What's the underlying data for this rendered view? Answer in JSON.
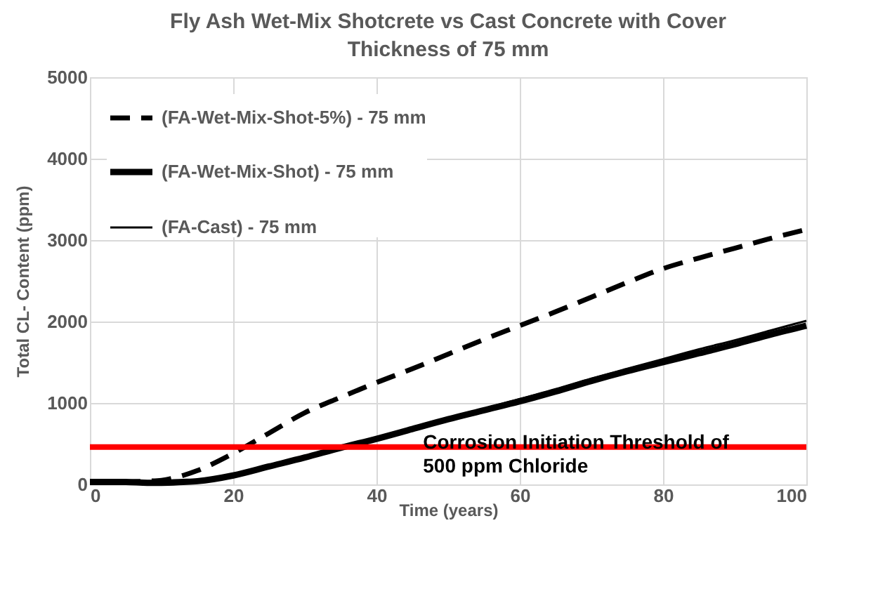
{
  "chart_data": {
    "type": "line",
    "title": "Fly Ash Wet-Mix Shotcrete vs Cast Concrete with Cover\nThickness of 75 mm",
    "xlabel": "Time (years)",
    "ylabel": "Total CL- Content (ppm)",
    "x": [
      0,
      5,
      8,
      10,
      13,
      15,
      20,
      25,
      30,
      35,
      40,
      45,
      50,
      55,
      60,
      65,
      70,
      75,
      80,
      85,
      90,
      95,
      100
    ],
    "series": [
      {
        "name": "(FA-Wet-Mix-Shot-5%) - 75 mm",
        "color": "#000000",
        "line_style": "dashed",
        "values": [
          30,
          30,
          40,
          50,
          110,
          170,
          380,
          630,
          880,
          1070,
          1250,
          1420,
          1600,
          1780,
          1950,
          2120,
          2300,
          2480,
          2650,
          2780,
          2900,
          3020,
          3130
        ]
      },
      {
        "name": "(FA-Wet-Mix-Shot) - 75 mm",
        "color": "#000000",
        "line_style": "solid",
        "values": [
          30,
          30,
          20,
          20,
          30,
          40,
          110,
          220,
          330,
          450,
          560,
          680,
          800,
          910,
          1020,
          1140,
          1270,
          1390,
          1500,
          1610,
          1720,
          1840,
          1950
        ]
      },
      {
        "name": "(FA-Cast) - 75 mm",
        "color": "#000000",
        "line_style": "solid",
        "values": [
          30,
          30,
          20,
          20,
          30,
          40,
          110,
          220,
          330,
          450,
          570,
          690,
          810,
          930,
          1050,
          1170,
          1300,
          1420,
          1540,
          1660,
          1770,
          1890,
          2010
        ]
      }
    ],
    "xlim": [
      0,
      100
    ],
    "xticks": [
      0,
      20,
      40,
      60,
      80,
      100
    ],
    "ylim": [
      0,
      5000
    ],
    "yticks": [
      0,
      1000,
      2000,
      3000,
      4000,
      5000
    ],
    "ref_lines": [
      {
        "axis": "y",
        "value": 460,
        "color": "#ff0000",
        "label": "Corrosion Initiation Threshold of\n500 ppm Chloride"
      }
    ],
    "grid": true,
    "legend": "top left",
    "marker": "none"
  }
}
